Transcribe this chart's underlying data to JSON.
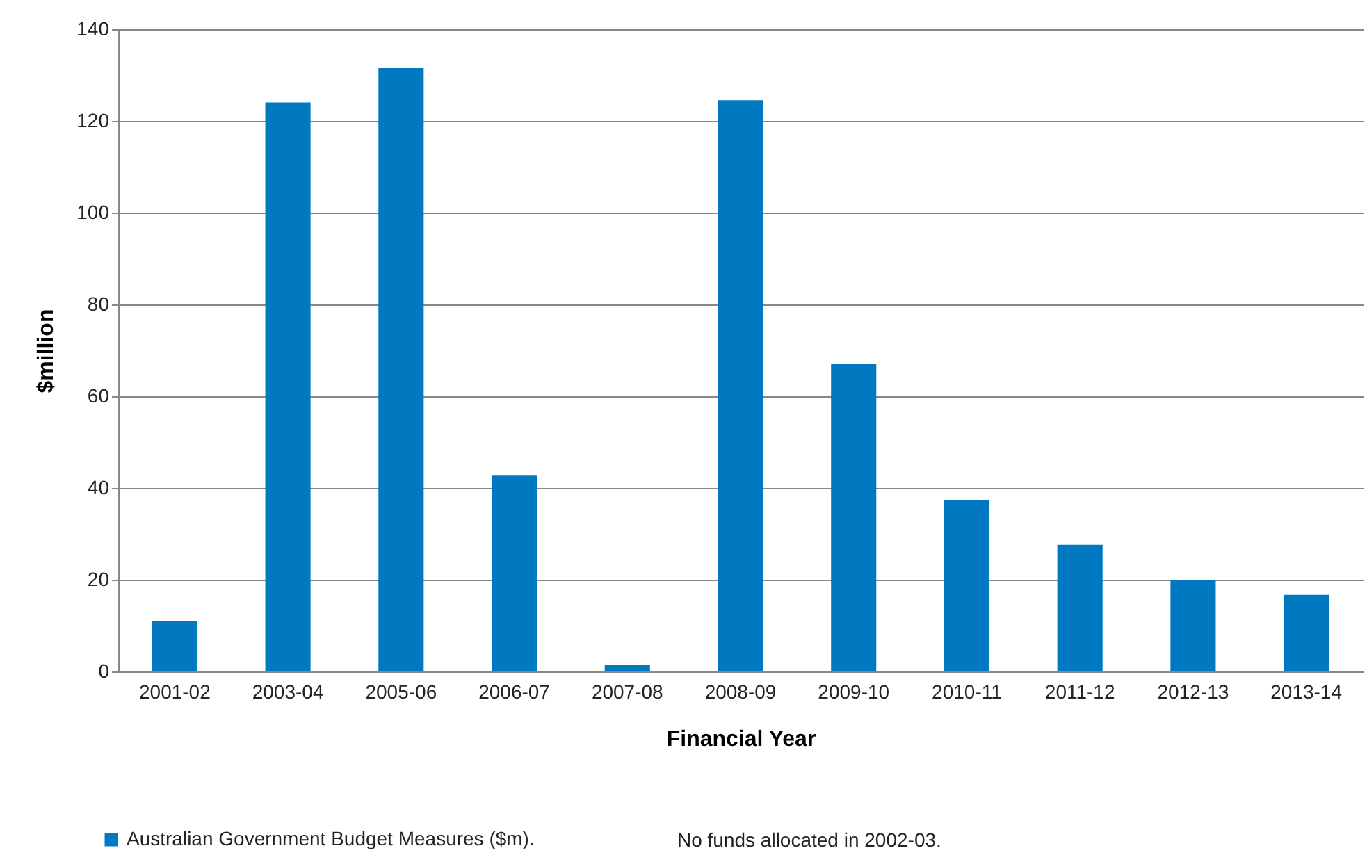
{
  "chart_data": {
    "type": "bar",
    "xlabel": "Financial Year",
    "ylabel": "$million",
    "categories": [
      "2001-02",
      "2003-04",
      "2005-06",
      "2006-07",
      "2007-08",
      "2008-09",
      "2009-10",
      "2010-11",
      "2011-12",
      "2012-13",
      "2013-14"
    ],
    "series": [
      {
        "name": "Australian Government Budget Measures ($m).",
        "color": "#0079c1",
        "values": [
          11,
          124,
          131.5,
          42.7,
          1.5,
          124.5,
          67,
          37.3,
          27.6,
          20,
          16.7
        ]
      }
    ],
    "ylim": [
      0,
      140
    ],
    "yticks": [
      0,
      20,
      40,
      60,
      80,
      100,
      120,
      140
    ],
    "grid": "y",
    "legend": "bottom left",
    "annotations": [
      "No funds allocated in 2002-03."
    ]
  }
}
